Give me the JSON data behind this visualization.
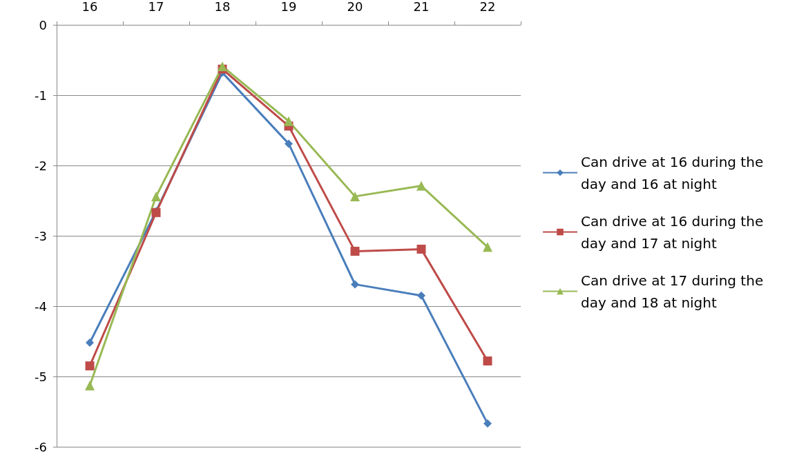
{
  "chart_data": {
    "type": "line",
    "categories": [
      "16",
      "17",
      "18",
      "19",
      "20",
      "21",
      "22"
    ],
    "ylim": [
      -6,
      0
    ],
    "yticks": [
      -6,
      -5,
      -4,
      -3,
      -2,
      -1,
      0
    ],
    "grid": "y",
    "legend": "right",
    "series": [
      {
        "name": "Can drive at 16 during the day and 16 at night",
        "color": "#4a7ebb",
        "marker": "diamond",
        "values": [
          -4.52,
          -2.65,
          -0.68,
          -1.69,
          -3.69,
          -3.85,
          -5.67
        ]
      },
      {
        "name": "Can drive at 16 during the day and 17 at night",
        "color": "#be4b48",
        "marker": "square",
        "values": [
          -4.85,
          -2.67,
          -0.63,
          -1.44,
          -3.22,
          -3.19,
          -4.78
        ]
      },
      {
        "name": "Can drive at 17 during the day and 18 at night",
        "color": "#98b954",
        "marker": "triangle",
        "values": [
          -5.13,
          -2.44,
          -0.59,
          -1.37,
          -2.44,
          -2.29,
          -3.16
        ]
      }
    ]
  }
}
